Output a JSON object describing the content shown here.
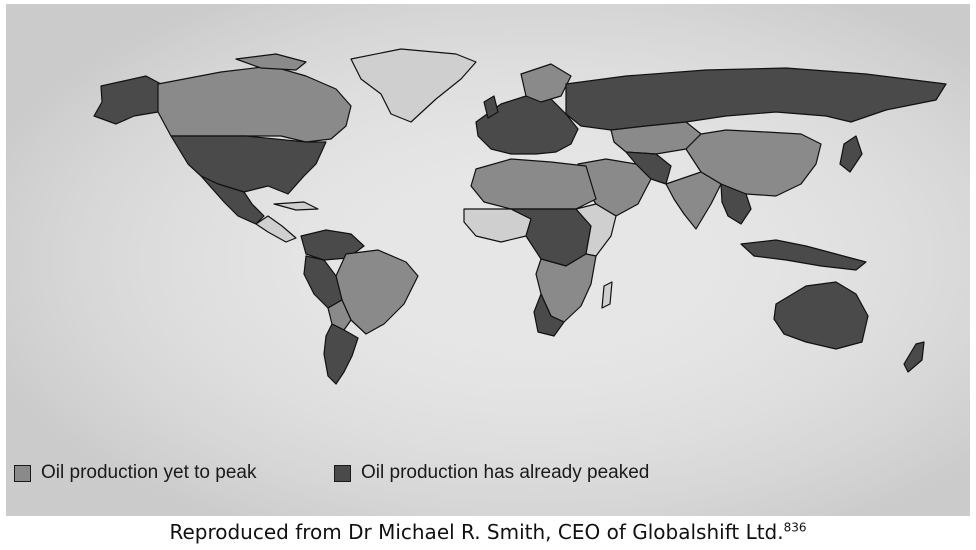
{
  "legend": {
    "yet_to_peak": {
      "label": "Oil production yet to peak",
      "color": "#8a8a8a"
    },
    "already_peaked": {
      "label": "Oil production has already peaked",
      "color": "#4a4a4a"
    }
  },
  "caption": {
    "text": "Reproduced from Dr Michael R. Smith, CEO of Globalshift Ltd.",
    "reference": "836"
  },
  "colors": {
    "background": "#e6e6e6",
    "no_data": "#cfcfcf",
    "border": "#111111"
  }
}
